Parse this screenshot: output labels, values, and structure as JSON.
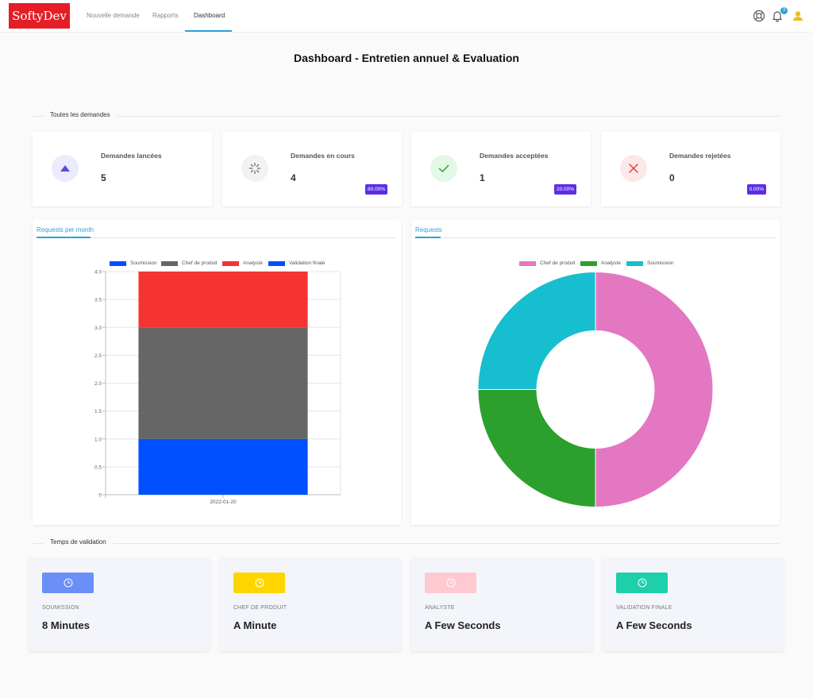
{
  "nav": {
    "logo": "SoftyDev",
    "links": [
      "Nouvelle demande",
      "Rapports",
      "Dashboard"
    ],
    "active_link": "Dashboard",
    "notification_count": "3"
  },
  "page": {
    "title": "Dashboard - Entretien annuel & Evaluation"
  },
  "sections": {
    "all_requests": "Toutes les demandes",
    "validation_time": "Temps de validation"
  },
  "stats": [
    {
      "title": "Demandes lancées",
      "value": "5",
      "pct": "",
      "icon": "triangle-up-icon",
      "color": "#5b4fd6",
      "bg": "#ecebfb"
    },
    {
      "title": "Demandes en cours",
      "value": "4",
      "pct": "80.00%",
      "icon": "spinner-icon",
      "color": "#666666",
      "bg": "#f2f2f2"
    },
    {
      "title": "Demandes acceptées",
      "value": "1",
      "pct": "20.00%",
      "icon": "check-icon",
      "color": "#2ca02c",
      "bg": "#e4f8e6"
    },
    {
      "title": "Demandes rejetées",
      "value": "0",
      "pct": "0.00%",
      "icon": "close-icon",
      "color": "#e53935",
      "bg": "#fde8e8"
    }
  ],
  "bar_panel": {
    "tab": "Requests per month"
  },
  "pie_panel": {
    "tab": "Requests"
  },
  "chart_data": [
    {
      "type": "bar",
      "stacked": true,
      "categories": [
        "2022-01-20"
      ],
      "series": [
        {
          "name": "Soumission",
          "color": "#0050ff",
          "values": [
            1
          ]
        },
        {
          "name": "Chef de produit",
          "color": "#666666",
          "values": [
            2
          ]
        },
        {
          "name": "Analyste",
          "color": "#f53333",
          "values": [
            1
          ]
        },
        {
          "name": "Validation finale",
          "color": "#0050ff",
          "values": [
            0
          ]
        }
      ],
      "ylim": [
        0,
        4
      ],
      "yticks": [
        "0",
        "0.5",
        "1.0",
        "1.5",
        "2.0",
        "2.5",
        "3.0",
        "3.5",
        "4.0"
      ],
      "legend": "top",
      "grid": true
    },
    {
      "type": "pie",
      "donut": true,
      "slices": [
        {
          "name": "Chef de produit",
          "color": "#e377c2",
          "value": 2
        },
        {
          "name": "Analyste",
          "color": "#2ca02c",
          "value": 1
        },
        {
          "name": "Soumission",
          "color": "#17becf",
          "value": 1
        }
      ],
      "legend": "top"
    }
  ],
  "validation_times": [
    {
      "label": "SOUMISSION",
      "value": "8 Minutes",
      "color": "#6b8ff8",
      "icon": "clock-icon"
    },
    {
      "label": "CHEF DE PRODUIT",
      "value": "A Minute",
      "color": "#ffd500",
      "icon": "clock-icon"
    },
    {
      "label": "ANALYSTE",
      "value": "A Few Seconds",
      "color": "#ffc9d1",
      "icon": "clock-icon"
    },
    {
      "label": "VALIDATION FINALE",
      "value": "A Few Seconds",
      "color": "#1dcfab",
      "icon": "clock-icon"
    }
  ]
}
